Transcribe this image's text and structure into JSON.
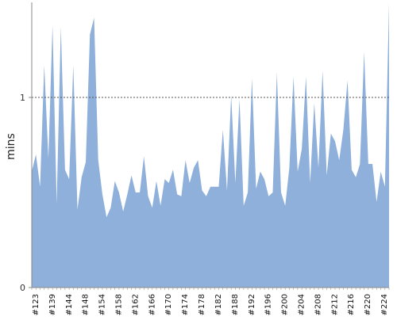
{
  "chart_data": {
    "type": "area",
    "ylabel": "mins",
    "xlabel": "",
    "title": "",
    "ylim": [
      0,
      1.5
    ],
    "yticks": [
      {
        "value": 0,
        "label": "0"
      },
      {
        "value": 1,
        "label": "1"
      }
    ],
    "reference_line": {
      "value": 1,
      "style": "dotted"
    },
    "color": "#8EB0DA",
    "x_start": 123,
    "x_end": 227,
    "x_tick_labels": [
      "#123",
      "#139",
      "#144",
      "#148",
      "#154",
      "#158",
      "#162",
      "#166",
      "#170",
      "#174",
      "#178",
      "#182",
      "#188",
      "#192",
      "#196",
      "#200",
      "#204",
      "#208",
      "#212",
      "#216",
      "#220",
      "#224"
    ],
    "series": [
      {
        "values": [
          0.61,
          0.7,
          0.53,
          1.17,
          0.68,
          1.38,
          0.44,
          1.37,
          0.62,
          0.57,
          1.17,
          0.41,
          0.58,
          0.66,
          1.33,
          1.42,
          0.67,
          0.49,
          0.37,
          0.42,
          0.56,
          0.5,
          0.4,
          0.49,
          0.59,
          0.5,
          0.5,
          0.69,
          0.48,
          0.42,
          0.56,
          0.43,
          0.57,
          0.55,
          0.62,
          0.49,
          0.48,
          0.67,
          0.55,
          0.63,
          0.67,
          0.51,
          0.48,
          0.53,
          0.53,
          0.53,
          0.83,
          0.51,
          1.01,
          0.55,
          0.99,
          0.43,
          0.5,
          1.1,
          0.52,
          0.61,
          0.57,
          0.48,
          0.5,
          1.13,
          0.5,
          0.43,
          0.63,
          1.11,
          0.61,
          0.73,
          1.11,
          0.55,
          0.97,
          0.63,
          1.14,
          0.59,
          0.81,
          0.77,
          0.67,
          0.83,
          1.09,
          0.62,
          0.58,
          0.65,
          1.24,
          0.65,
          0.65,
          0.45,
          0.61,
          0.53,
          1.5
        ]
      }
    ]
  }
}
